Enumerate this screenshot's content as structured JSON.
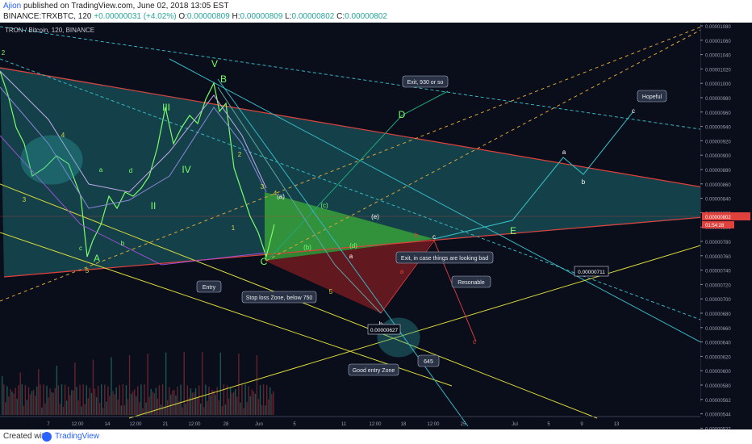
{
  "header": {
    "author": "Ajion",
    "published": " published on TradingView.com, June 02, 2018 13:05 EST",
    "symbol": "BINANCE:TRXBTC, 120",
    "change": "+0.00000031 (+4.02%)",
    "o_label": "O:",
    "o": "0.00000809",
    "h_label": "H:",
    "h": "0.00000809",
    "l_label": "L:",
    "l": "0.00000802",
    "c_label": "C:",
    "c": "0.00000802"
  },
  "footer": {
    "created_with": "Created with",
    "brand": "TradingView"
  },
  "chart_data": {
    "type": "line",
    "title": "TRON / Bitcoin, 120, BINANCE",
    "price_scale": {
      "ticks": [
        "0.00001080",
        "0.00001060",
        "0.00001040",
        "0.00001020",
        "0.00001000",
        "0.00000980",
        "0.00000960",
        "0.00000940",
        "0.00000920",
        "0.00000900",
        "0.00000880",
        "0.00000860",
        "0.00000840",
        "0.00000820",
        "0.00000800",
        "0.00000780",
        "0.00000760",
        "0.00000740",
        "0.00000720",
        "0.00000700",
        "0.00000680",
        "0.00000660",
        "0.00000640",
        "0.00000620",
        "0.00000600",
        "0.00000580",
        "0.00000562",
        "0.00000544",
        "0.00000527"
      ],
      "last_price": "0.00000802",
      "countdown": "01:54:28"
    },
    "time_scale": [
      "7",
      "12:00",
      "14",
      "12:00",
      "21",
      "12:00",
      "28",
      "Jun",
      "5",
      "11",
      "12:00",
      "18",
      "12:00",
      "25",
      "Jul",
      "5",
      "9",
      "13"
    ],
    "wave_labels": [
      "2",
      "3",
      "4",
      "5",
      "A",
      "a",
      "b",
      "c",
      "d",
      "II",
      "III",
      "IV",
      "V",
      "B",
      "1",
      "2",
      "3",
      "4",
      "5",
      "C",
      "(a)",
      "(b)",
      "(c)",
      "(d)",
      "(e)",
      "a",
      "b",
      "c",
      "D",
      "E",
      "a",
      "b",
      "c",
      "a",
      "b",
      "c"
    ],
    "price_labels": [
      "0.00000627",
      "0.00000711"
    ],
    "annotations": [
      "Exit, 930 or so",
      "Hopeful",
      "Exit, in case things are looking bad",
      "Resonable",
      "Entry",
      "Stop loss Zone, below 750",
      "Good entry Zone",
      "645"
    ],
    "colors": {
      "background": "#0a0d1a",
      "wave": "#7cfc6c",
      "channel": "#20c3c8",
      "support": "#d9d93c",
      "resistance": "#e0413c",
      "target": "#26a69a",
      "stop": "#b02a30"
    }
  }
}
